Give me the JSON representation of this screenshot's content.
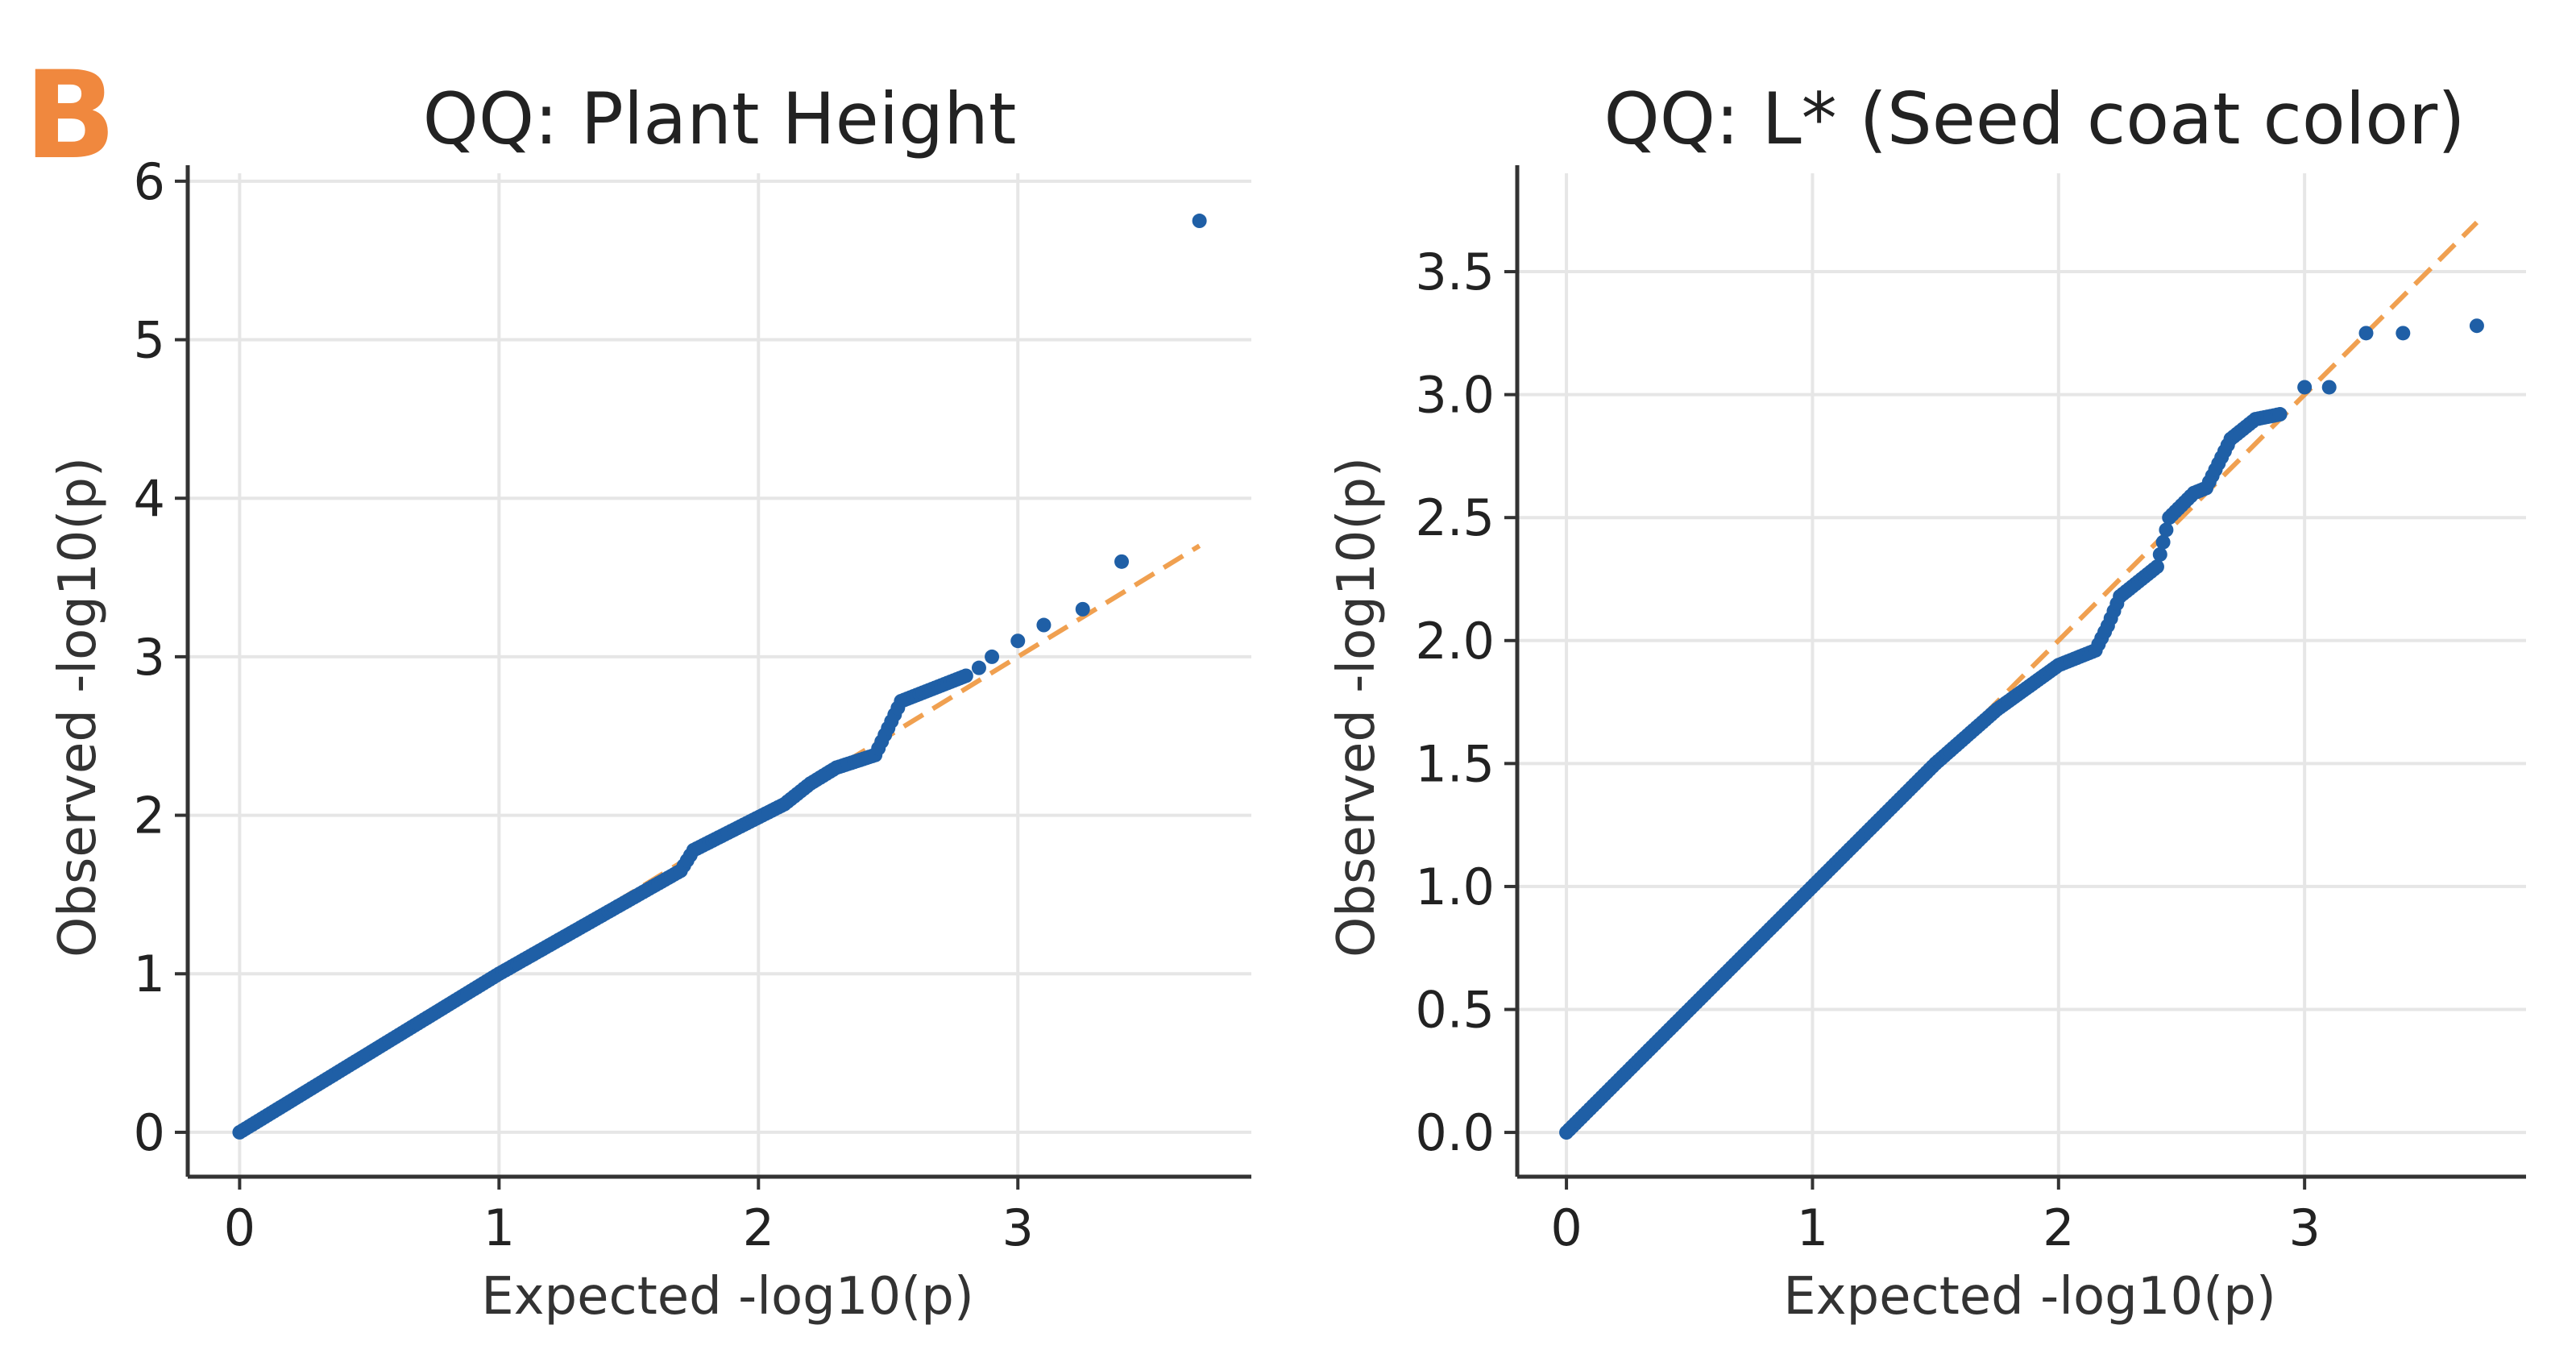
{
  "panel_label": "B",
  "colors": {
    "panel_label": "#f0883e",
    "points": "#1f5fa6",
    "reference_line": "#f0a050",
    "axis": "#333333",
    "grid": "#e6e6e6"
  },
  "chart_data": [
    {
      "type": "scatter",
      "title": "QQ: Plant Height",
      "xlabel": "Expected -log10(p)",
      "ylabel": "Observed -log10(p)",
      "xlim": [
        -0.2,
        3.9
      ],
      "ylim": [
        -0.28,
        6.05
      ],
      "xticks": [
        0,
        1,
        2,
        3
      ],
      "xtick_labels": [
        "0",
        "1",
        "2",
        "3"
      ],
      "yticks": [
        0,
        1,
        2,
        3,
        4,
        5,
        6
      ],
      "ytick_labels": [
        "0",
        "1",
        "2",
        "3",
        "4",
        "5",
        "6"
      ],
      "grid": true,
      "reference_line": {
        "style": "dashed",
        "x": [
          0,
          3.7
        ],
        "y": [
          0,
          3.7
        ]
      },
      "series": [
        {
          "trend": [
            [
              0,
              0
            ],
            [
              1,
              1
            ],
            [
              1.7,
              1.65
            ],
            [
              1.75,
              1.78
            ],
            [
              2.1,
              2.07
            ],
            [
              2.2,
              2.2
            ],
            [
              2.3,
              2.3
            ],
            [
              2.45,
              2.38
            ],
            [
              2.55,
              2.72
            ],
            [
              2.8,
              2.88
            ]
          ],
          "x": [
            2.85,
            2.9,
            3.0,
            3.1,
            3.25,
            3.4,
            3.7
          ],
          "y": [
            2.93,
            3.0,
            3.1,
            3.2,
            3.3,
            3.6,
            5.75
          ]
        }
      ]
    },
    {
      "type": "scatter",
      "title": "QQ: L* (Seed coat color)",
      "xlabel": "Expected -log10(p)",
      "ylabel": "Observed -log10(p)",
      "xlim": [
        -0.2,
        3.9
      ],
      "ylim": [
        -0.18,
        3.9
      ],
      "xticks": [
        0,
        1,
        2,
        3
      ],
      "xtick_labels": [
        "0",
        "1",
        "2",
        "3"
      ],
      "yticks": [
        0.0,
        0.5,
        1.0,
        1.5,
        2.0,
        2.5,
        3.0,
        3.5
      ],
      "ytick_labels": [
        "0.0",
        "0.5",
        "1.0",
        "1.5",
        "2.0",
        "2.5",
        "3.0",
        "3.5"
      ],
      "grid": true,
      "reference_line": {
        "style": "dashed",
        "x": [
          1.6,
          3.7
        ],
        "y": [
          1.6,
          3.7
        ]
      },
      "series": [
        {
          "trend": [
            [
              0,
              0
            ],
            [
              1.5,
              1.5
            ],
            [
              1.75,
              1.72
            ],
            [
              2.0,
              1.9
            ],
            [
              2.15,
              1.96
            ],
            [
              2.2,
              2.06
            ],
            [
              2.25,
              2.18
            ],
            [
              2.4,
              2.3
            ],
            [
              2.45,
              2.5
            ],
            [
              2.55,
              2.6
            ],
            [
              2.6,
              2.62
            ],
            [
              2.7,
              2.82
            ],
            [
              2.8,
              2.9
            ],
            [
              2.9,
              2.92
            ]
          ],
          "x": [
            3.0,
            3.1,
            3.25,
            3.4,
            3.7
          ],
          "y": [
            3.03,
            3.03,
            3.25,
            3.25,
            3.28
          ]
        }
      ]
    }
  ]
}
